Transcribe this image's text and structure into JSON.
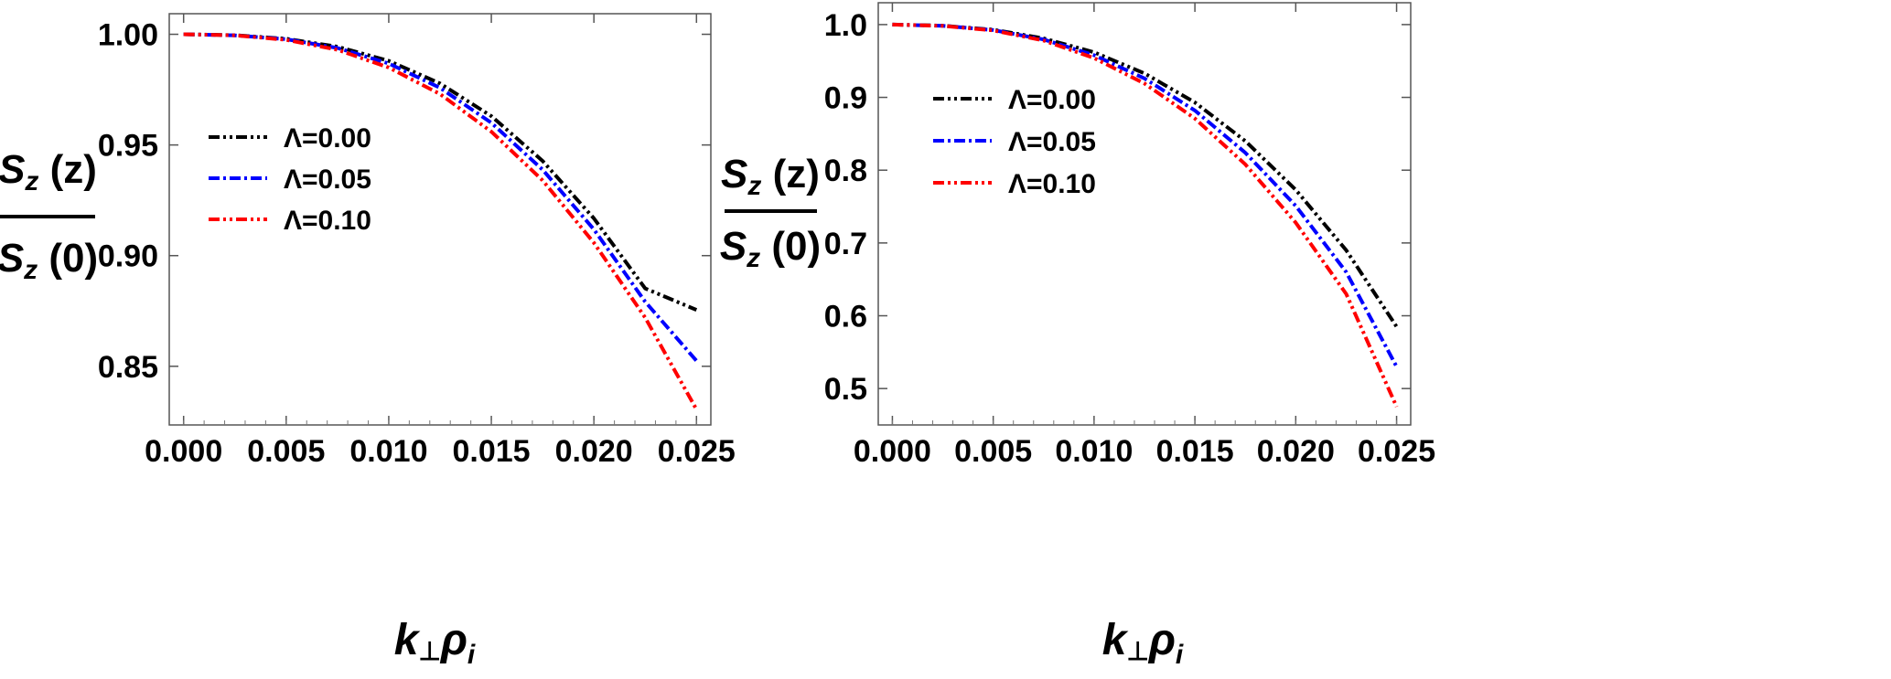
{
  "chart_data": [
    {
      "type": "line",
      "xlabel": "k⊥ρi",
      "ylabel": "Sz (z) / Sz (0)",
      "ylabel_num": "(z)",
      "ylabel_den": "(0)",
      "xlim": [
        -0.0007,
        0.0257
      ],
      "ylim": [
        0.8235,
        1.0093
      ],
      "xticks": [
        0.0,
        0.005,
        0.01,
        0.015,
        0.02,
        0.025
      ],
      "xtick_labels": [
        "0.000",
        "0.005",
        "0.010",
        "0.015",
        "0.020",
        "0.025"
      ],
      "yticks": [
        0.85,
        0.9,
        0.95,
        1.0
      ],
      "ytick_labels": [
        "0.85",
        "0.90",
        "0.95",
        "1.00"
      ],
      "grid": false,
      "legend_position": "left-middle",
      "x": [
        0.0,
        0.0025,
        0.005,
        0.0075,
        0.01,
        0.0125,
        0.015,
        0.0175,
        0.02,
        0.0225,
        0.025
      ],
      "series": [
        {
          "name": "Λ=0.00",
          "color": "#000000",
          "values": [
            1.0,
            0.9996,
            0.998,
            0.9944,
            0.988,
            0.9778,
            0.963,
            0.9428,
            0.9168,
            0.8852,
            0.8755
          ]
        },
        {
          "name": "Λ=0.05",
          "color": "#0000ff",
          "values": [
            1.0,
            0.9995,
            0.9978,
            0.9938,
            0.9868,
            0.9758,
            0.96,
            0.9388,
            0.9118,
            0.8792,
            0.8525
          ]
        },
        {
          "name": "Λ=0.10",
          "color": "#ff0000",
          "values": [
            1.0,
            0.9995,
            0.9975,
            0.993,
            0.985,
            0.973,
            0.956,
            0.934,
            0.9058,
            0.872,
            0.8305
          ]
        }
      ]
    },
    {
      "type": "line",
      "xlabel": "k⊥ρi",
      "ylabel": "Sz (z) / Sz (0)",
      "ylabel_num": "(z)",
      "ylabel_den": "(0)",
      "xlim": [
        -0.0007,
        0.0257
      ],
      "ylim": [
        0.45,
        1.03
      ],
      "xticks": [
        0.0,
        0.005,
        0.01,
        0.015,
        0.02,
        0.025
      ],
      "xtick_labels": [
        "0.000",
        "0.005",
        "0.010",
        "0.015",
        "0.020",
        "0.025"
      ],
      "yticks": [
        0.5,
        0.6,
        0.7,
        0.8,
        0.9,
        1.0
      ],
      "ytick_labels": [
        "0.5",
        "0.6",
        "0.7",
        "0.8",
        "0.9",
        "1.0"
      ],
      "grid": false,
      "legend_position": "top-left",
      "x": [
        0.0,
        0.0025,
        0.005,
        0.0075,
        0.01,
        0.0125,
        0.015,
        0.0175,
        0.02,
        0.0225,
        0.025
      ],
      "series": [
        {
          "name": "Λ=0.00",
          "color": "#000000",
          "values": [
            1.0,
            0.9985,
            0.993,
            0.981,
            0.962,
            0.933,
            0.893,
            0.84,
            0.773,
            0.69,
            0.585
          ]
        },
        {
          "name": "Λ=0.05",
          "color": "#0000ff",
          "values": [
            1.0,
            0.9984,
            0.9925,
            0.9795,
            0.958,
            0.926,
            0.882,
            0.824,
            0.751,
            0.66,
            0.53
          ]
        },
        {
          "name": "Λ=0.10",
          "color": "#ff0000",
          "values": [
            1.0,
            0.9983,
            0.992,
            0.978,
            0.954,
            0.919,
            0.871,
            0.808,
            0.728,
            0.63,
            0.475
          ]
        }
      ]
    }
  ]
}
